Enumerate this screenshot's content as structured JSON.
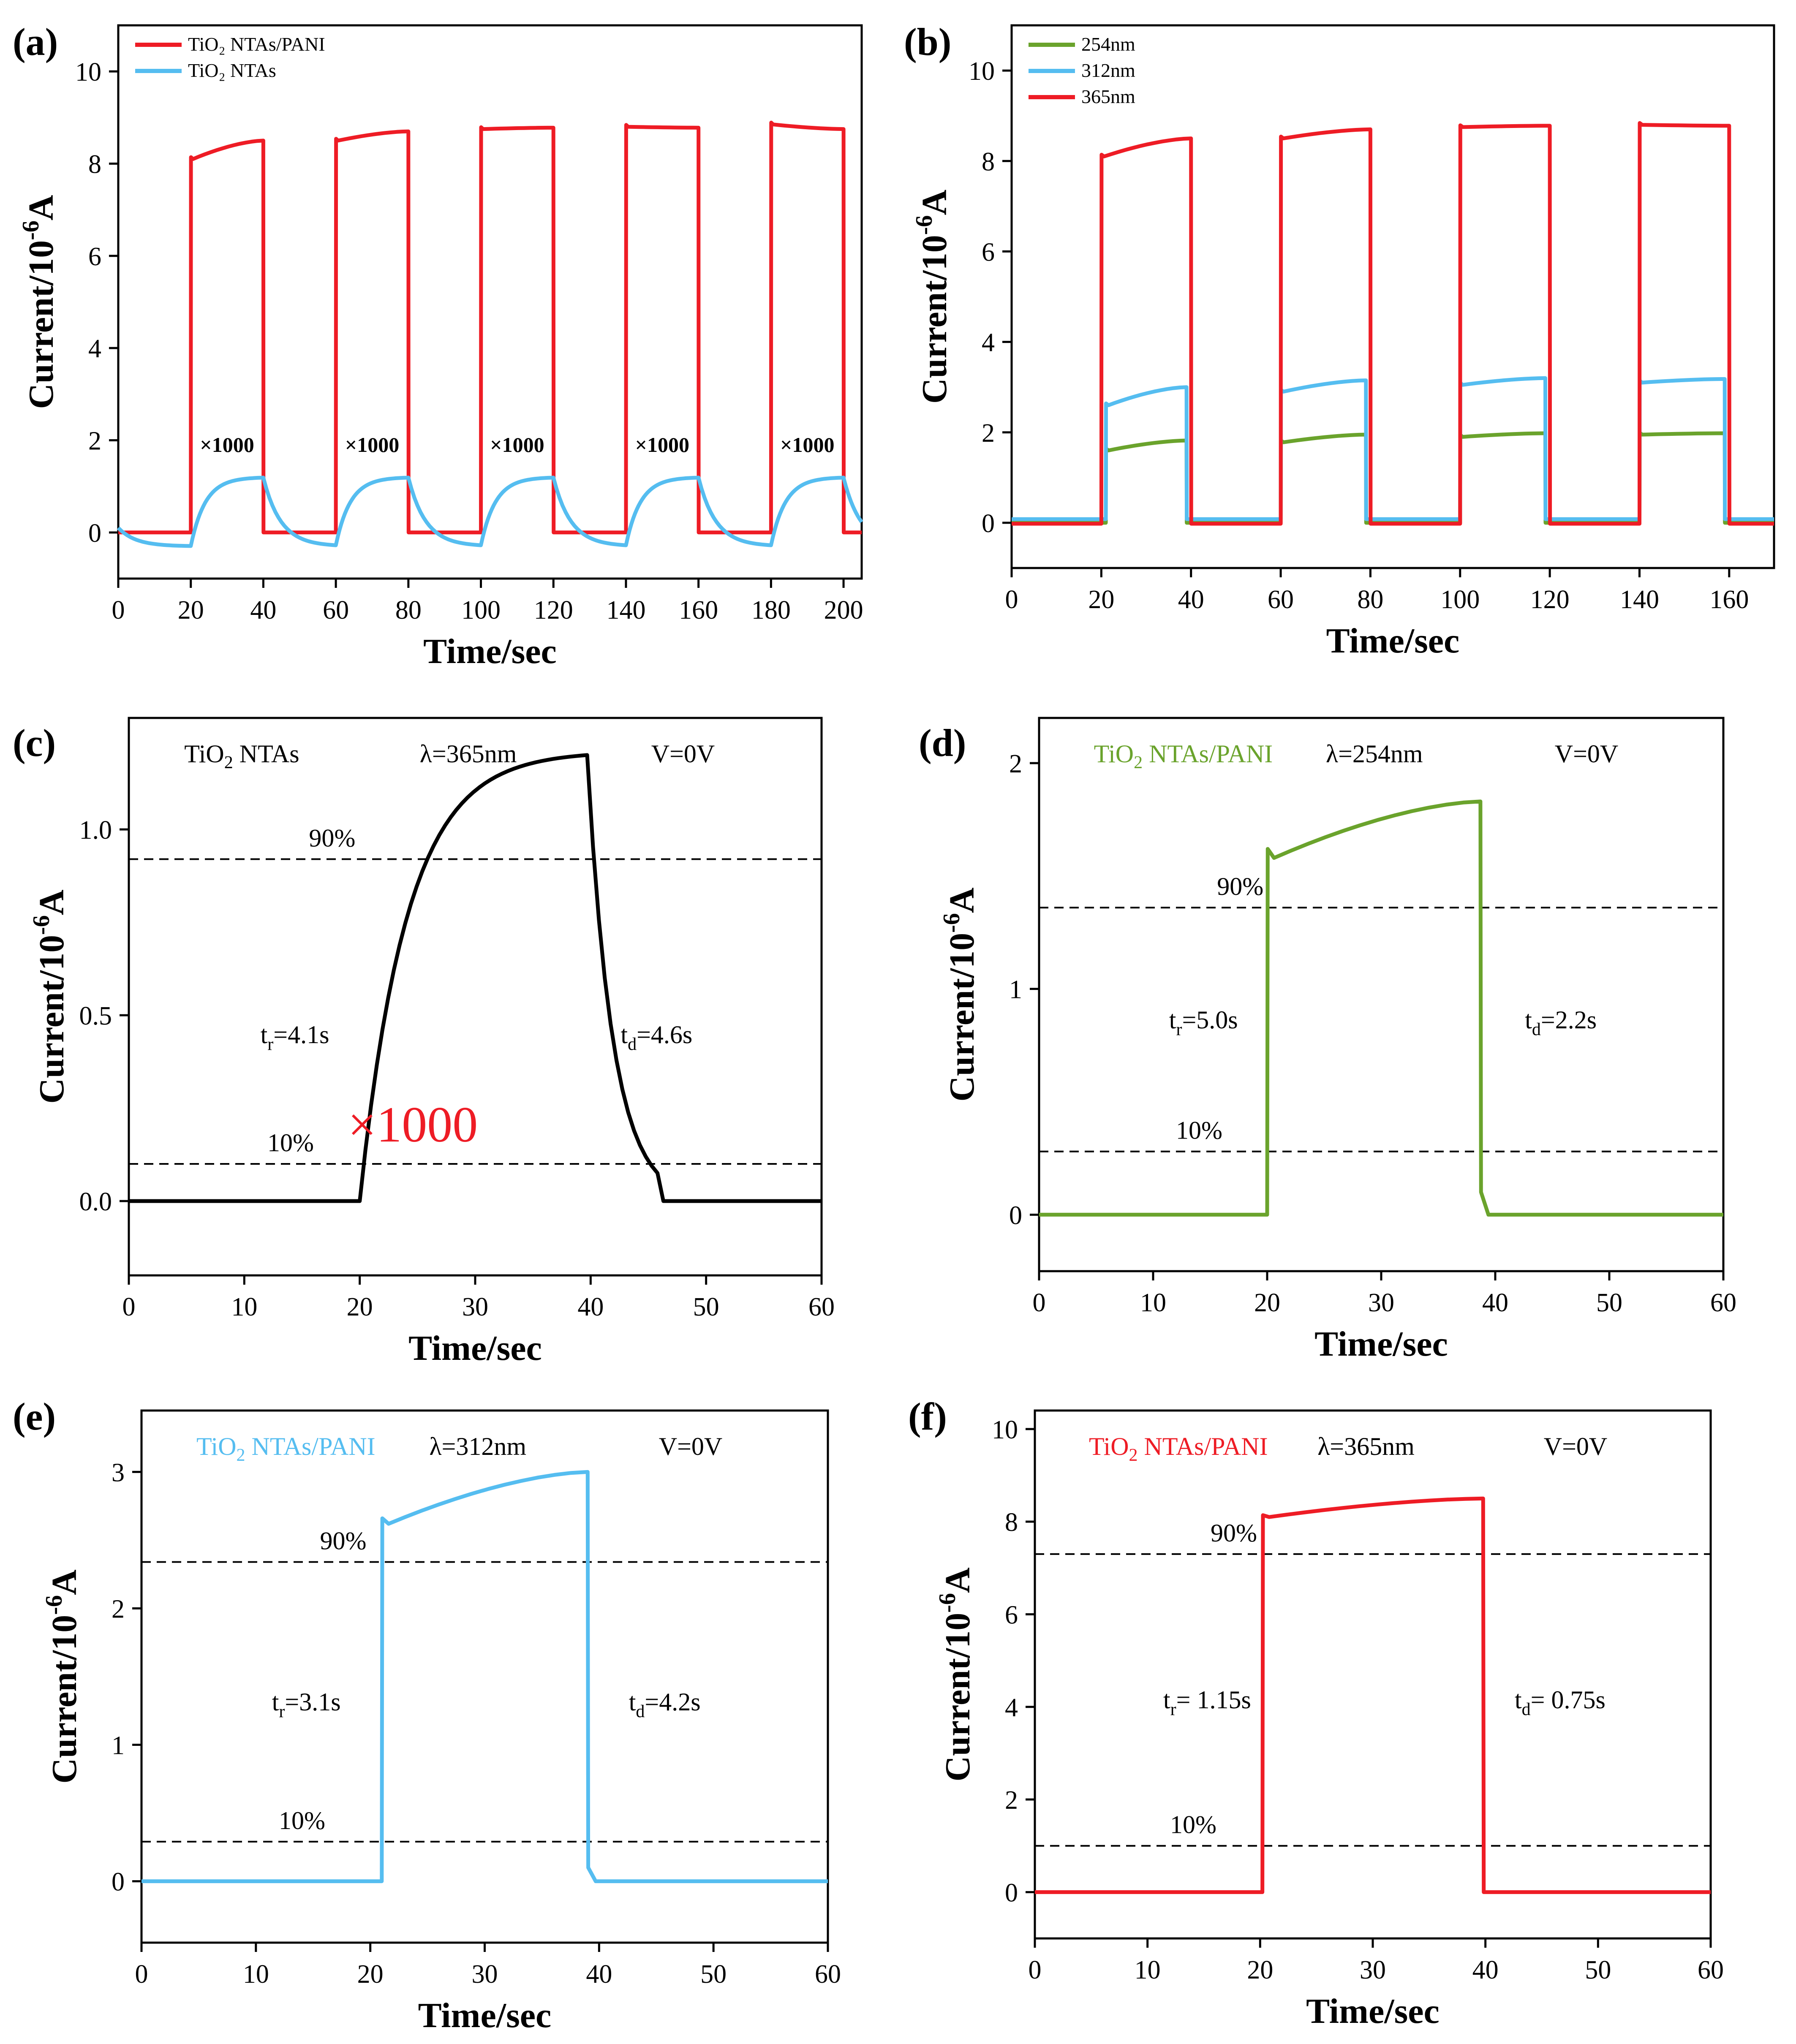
{
  "figure": {
    "panels": [
      "(a)",
      "(b)",
      "(c)",
      "(d)",
      "(e)",
      "(f)"
    ]
  },
  "colors": {
    "red": "#ee1c25",
    "blue": "#55bdf0",
    "green": "#6aa32c",
    "black": "#000000"
  },
  "chart_data": [
    {
      "panel": "(a)",
      "type": "line",
      "xlabel": "Time/sec",
      "ylabel": "Current/10-6A",
      "xlim": [
        0,
        205
      ],
      "ylim": [
        -1,
        11
      ],
      "xticks": [
        0,
        20,
        40,
        60,
        80,
        100,
        120,
        140,
        160,
        180,
        200
      ],
      "yticks": [
        0,
        2,
        4,
        6,
        8,
        10
      ],
      "legend": [
        "TiO₂ NTAs/PANI",
        "TiO₂ NTAs"
      ],
      "legend_position": "top-left",
      "annotations": [
        "×1000",
        "×1000",
        "×1000",
        "×1000",
        "×1000"
      ],
      "series": [
        {
          "name": "TiO₂ NTAs/PANI",
          "color": "red",
          "kind": "square",
          "on": [
            [
              20,
              40,
              8.1,
              8.5
            ],
            [
              60,
              80,
              8.5,
              8.7
            ],
            [
              100,
              120,
              8.75,
              8.78
            ],
            [
              140,
              160,
              8.8,
              8.78
            ],
            [
              180,
              200,
              8.85,
              8.75
            ]
          ],
          "end": 205,
          "base": 0
        },
        {
          "name": "TiO₂ NTAs",
          "color": "blue",
          "kind": "exp",
          "on": [
            [
              20,
              40
            ],
            [
              60,
              80
            ],
            [
              100,
              120
            ],
            [
              140,
              160
            ],
            [
              180,
              200
            ]
          ],
          "end": 205,
          "low": -0.3,
          "high": 1.2,
          "tau": 4
        }
      ]
    },
    {
      "panel": "(b)",
      "type": "line",
      "xlabel": "Time/sec",
      "ylabel": "Current/10-6A",
      "xlim": [
        0,
        170
      ],
      "ylim": [
        -1,
        11
      ],
      "xticks": [
        0,
        20,
        40,
        60,
        80,
        100,
        120,
        140,
        160
      ],
      "yticks": [
        0,
        2,
        4,
        6,
        8,
        10
      ],
      "legend": [
        "254nm",
        "312nm",
        "365nm"
      ],
      "legend_position": "top-left",
      "series": [
        {
          "name": "254nm",
          "color": "green",
          "kind": "square",
          "on": [
            [
              21,
              39,
              1.6,
              1.82
            ],
            [
              60,
              79,
              1.78,
              1.95
            ],
            [
              100,
              119,
              1.9,
              1.98
            ],
            [
              140,
              159,
              1.95,
              1.98
            ]
          ],
          "end": 170,
          "base": 0
        },
        {
          "name": "312nm",
          "color": "blue",
          "kind": "square",
          "on": [
            [
              21,
              39,
              2.6,
              3.0
            ],
            [
              60,
              79,
              2.9,
              3.15
            ],
            [
              100,
              119,
              3.05,
              3.2
            ],
            [
              140,
              159,
              3.1,
              3.18
            ]
          ],
          "end": 170,
          "base": 0.08
        },
        {
          "name": "365nm",
          "color": "red",
          "kind": "square",
          "on": [
            [
              20,
              40,
              8.1,
              8.5
            ],
            [
              60,
              80,
              8.5,
              8.7
            ],
            [
              100,
              120,
              8.75,
              8.78
            ],
            [
              140,
              160,
              8.8,
              8.78
            ]
          ],
          "end": 170,
          "base": -0.02
        }
      ]
    },
    {
      "panel": "(c)",
      "type": "line",
      "xlabel": "Time/sec",
      "ylabel": "Current/10-6A",
      "xlim": [
        0,
        60
      ],
      "ylim": [
        -0.2,
        1.3
      ],
      "xticks": [
        0,
        10,
        20,
        30,
        40,
        50,
        60
      ],
      "yticks": [
        0.0,
        0.5,
        1.0
      ],
      "ytick_labels": [
        "0.0",
        "0.5",
        "1.0"
      ],
      "sample": "TiO₂ NTAs",
      "wavelength": "λ=365nm",
      "bias": "V=0V",
      "rise_label": "tr=4.1s",
      "decay_label": "td=4.6s",
      "multiplier": "×1000",
      "hlines": [
        {
          "label": "90%",
          "y": 0.92
        },
        {
          "label": "10%",
          "y": 0.1
        }
      ],
      "series": [
        {
          "name": "TiO₂ NTAs",
          "color": "black",
          "kind": "exp",
          "on": [
            [
              20,
              39.7
            ]
          ],
          "end": 60,
          "low": 0,
          "high": 1.21,
          "tau": 4.1,
          "tau_off": 2.2,
          "floor": 46
        }
      ]
    },
    {
      "panel": "(d)",
      "type": "line",
      "xlabel": "Time/sec",
      "ylabel": "Current/10-6A",
      "xlim": [
        0,
        60
      ],
      "ylim": [
        -0.25,
        2.2
      ],
      "xticks": [
        0,
        10,
        20,
        30,
        40,
        50,
        60
      ],
      "yticks": [
        0,
        1,
        2
      ],
      "sample": "TiO₂ NTAs/PANI",
      "wavelength": "λ=254nm",
      "bias": "V=0V",
      "rise_label": "tr=5.0s",
      "decay_label": "td=2.2s",
      "hlines": [
        {
          "label": "90%",
          "y": 1.36
        },
        {
          "label": "10%",
          "y": 0.28
        }
      ],
      "series": [
        {
          "name": "254nm",
          "color": "green",
          "kind": "square",
          "on": [
            [
              20,
              38.7,
              1.58,
              1.83
            ]
          ],
          "end": 60,
          "base": 0,
          "tail": 0.1
        }
      ]
    },
    {
      "panel": "(e)",
      "type": "line",
      "xlabel": "Time/sec",
      "ylabel": "Current/10-6A",
      "xlim": [
        0,
        60
      ],
      "ylim": [
        -0.45,
        3.45
      ],
      "xticks": [
        0,
        10,
        20,
        30,
        40,
        50,
        60
      ],
      "yticks": [
        0,
        1,
        2,
        3
      ],
      "sample": "TiO₂ NTAs/PANI",
      "wavelength": "λ=312nm",
      "bias": "V=0V",
      "rise_label": "tr=3.1s",
      "decay_label": "td=4.2s",
      "hlines": [
        {
          "label": "90%",
          "y": 2.34
        },
        {
          "label": "10%",
          "y": 0.29
        }
      ],
      "series": [
        {
          "name": "312nm",
          "color": "blue",
          "kind": "square",
          "on": [
            [
              21,
              39,
              2.62,
              3.0
            ]
          ],
          "end": 60,
          "base": 0,
          "tail": 0.1
        }
      ]
    },
    {
      "panel": "(f)",
      "type": "line",
      "xlabel": "Time/sec",
      "ylabel": "Current/10-6A",
      "xlim": [
        0,
        60
      ],
      "ylim": [
        -1,
        10.4
      ],
      "xticks": [
        0,
        10,
        20,
        30,
        40,
        50,
        60
      ],
      "yticks": [
        0,
        2,
        4,
        6,
        8,
        10
      ],
      "sample": "TiO₂ NTAs/PANI",
      "wavelength": "λ=365nm",
      "bias": "V=0V",
      "rise_label": "tr= 1.15s",
      "decay_label": "td= 0.75s",
      "hlines": [
        {
          "label": "90%",
          "y": 7.3
        },
        {
          "label": "10%",
          "y": 1.0
        }
      ],
      "series": [
        {
          "name": "365nm",
          "color": "red",
          "kind": "square",
          "on": [
            [
              20.2,
              39.8,
              8.1,
              8.5
            ]
          ],
          "end": 60,
          "base": 0
        }
      ]
    }
  ]
}
